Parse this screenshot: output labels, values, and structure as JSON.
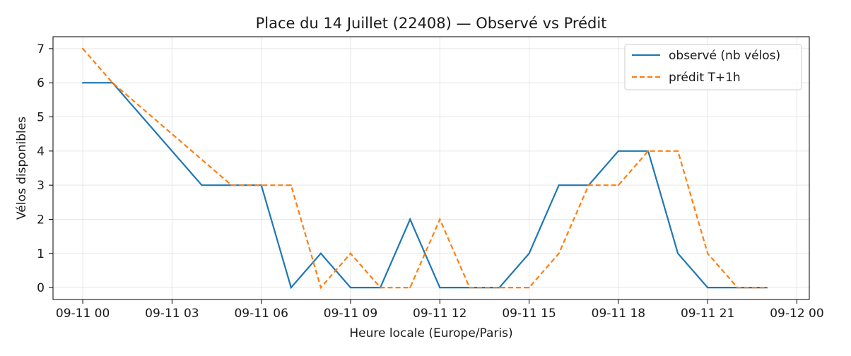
{
  "chart_data": {
    "type": "line",
    "title": "Place du 14 Juillet (22408) — Observé vs Prédit",
    "xlabel": "Heure locale (Europe/Paris)",
    "ylabel": "Vélos disponibles",
    "xlim": [
      "2023-09-10 23:00",
      "2023-09-12 00:25"
    ],
    "ylim": [
      -0.35,
      7.35
    ],
    "x_ticks": [
      "09-11 00",
      "09-11 03",
      "09-11 06",
      "09-11 09",
      "09-11 12",
      "09-11 15",
      "09-11 18",
      "09-11 21",
      "09-12 00"
    ],
    "y_ticks": [
      0,
      1,
      2,
      3,
      4,
      5,
      6,
      7
    ],
    "grid": true,
    "legend_position": "top-right",
    "series": [
      {
        "name": "observé (nb vélos)",
        "color": "#1f77b4",
        "dash": "solid",
        "points": [
          {
            "x": "09-11 00",
            "y": 6
          },
          {
            "x": "09-11 01",
            "y": 6
          },
          {
            "x": "09-11 04",
            "y": 3
          },
          {
            "x": "09-11 05",
            "y": 3
          },
          {
            "x": "09-11 06",
            "y": 3
          },
          {
            "x": "09-11 07",
            "y": 0
          },
          {
            "x": "09-11 08",
            "y": 1
          },
          {
            "x": "09-11 09",
            "y": 0
          },
          {
            "x": "09-11 10",
            "y": 0
          },
          {
            "x": "09-11 11",
            "y": 2
          },
          {
            "x": "09-11 12",
            "y": 0
          },
          {
            "x": "09-11 13",
            "y": 0
          },
          {
            "x": "09-11 14",
            "y": 0
          },
          {
            "x": "09-11 15",
            "y": 1
          },
          {
            "x": "09-11 16",
            "y": 3
          },
          {
            "x": "09-11 17",
            "y": 3
          },
          {
            "x": "09-11 18",
            "y": 4
          },
          {
            "x": "09-11 19",
            "y": 4
          },
          {
            "x": "09-11 20",
            "y": 1
          },
          {
            "x": "09-11 21",
            "y": 0
          },
          {
            "x": "09-11 22",
            "y": 0
          },
          {
            "x": "09-11 23",
            "y": 0
          }
        ]
      },
      {
        "name": "prédit T+1h",
        "color": "#ff7f0e",
        "dash": "dashed",
        "points": [
          {
            "x": "09-11 00",
            "y": 7
          },
          {
            "x": "09-11 01",
            "y": 6
          },
          {
            "x": "09-11 05",
            "y": 3
          },
          {
            "x": "09-11 06",
            "y": 3
          },
          {
            "x": "09-11 07",
            "y": 3
          },
          {
            "x": "09-11 08",
            "y": 0
          },
          {
            "x": "09-11 09",
            "y": 1
          },
          {
            "x": "09-11 10",
            "y": 0
          },
          {
            "x": "09-11 11",
            "y": 0
          },
          {
            "x": "09-11 12",
            "y": 2
          },
          {
            "x": "09-11 13",
            "y": 0
          },
          {
            "x": "09-11 14",
            "y": 0
          },
          {
            "x": "09-11 15",
            "y": 0
          },
          {
            "x": "09-11 16",
            "y": 1
          },
          {
            "x": "09-11 17",
            "y": 3
          },
          {
            "x": "09-11 18",
            "y": 3
          },
          {
            "x": "09-11 19",
            "y": 4
          },
          {
            "x": "09-11 20",
            "y": 4
          },
          {
            "x": "09-11 21",
            "y": 1
          },
          {
            "x": "09-11 22",
            "y": 0
          },
          {
            "x": "09-11 23",
            "y": 0
          }
        ]
      }
    ]
  }
}
